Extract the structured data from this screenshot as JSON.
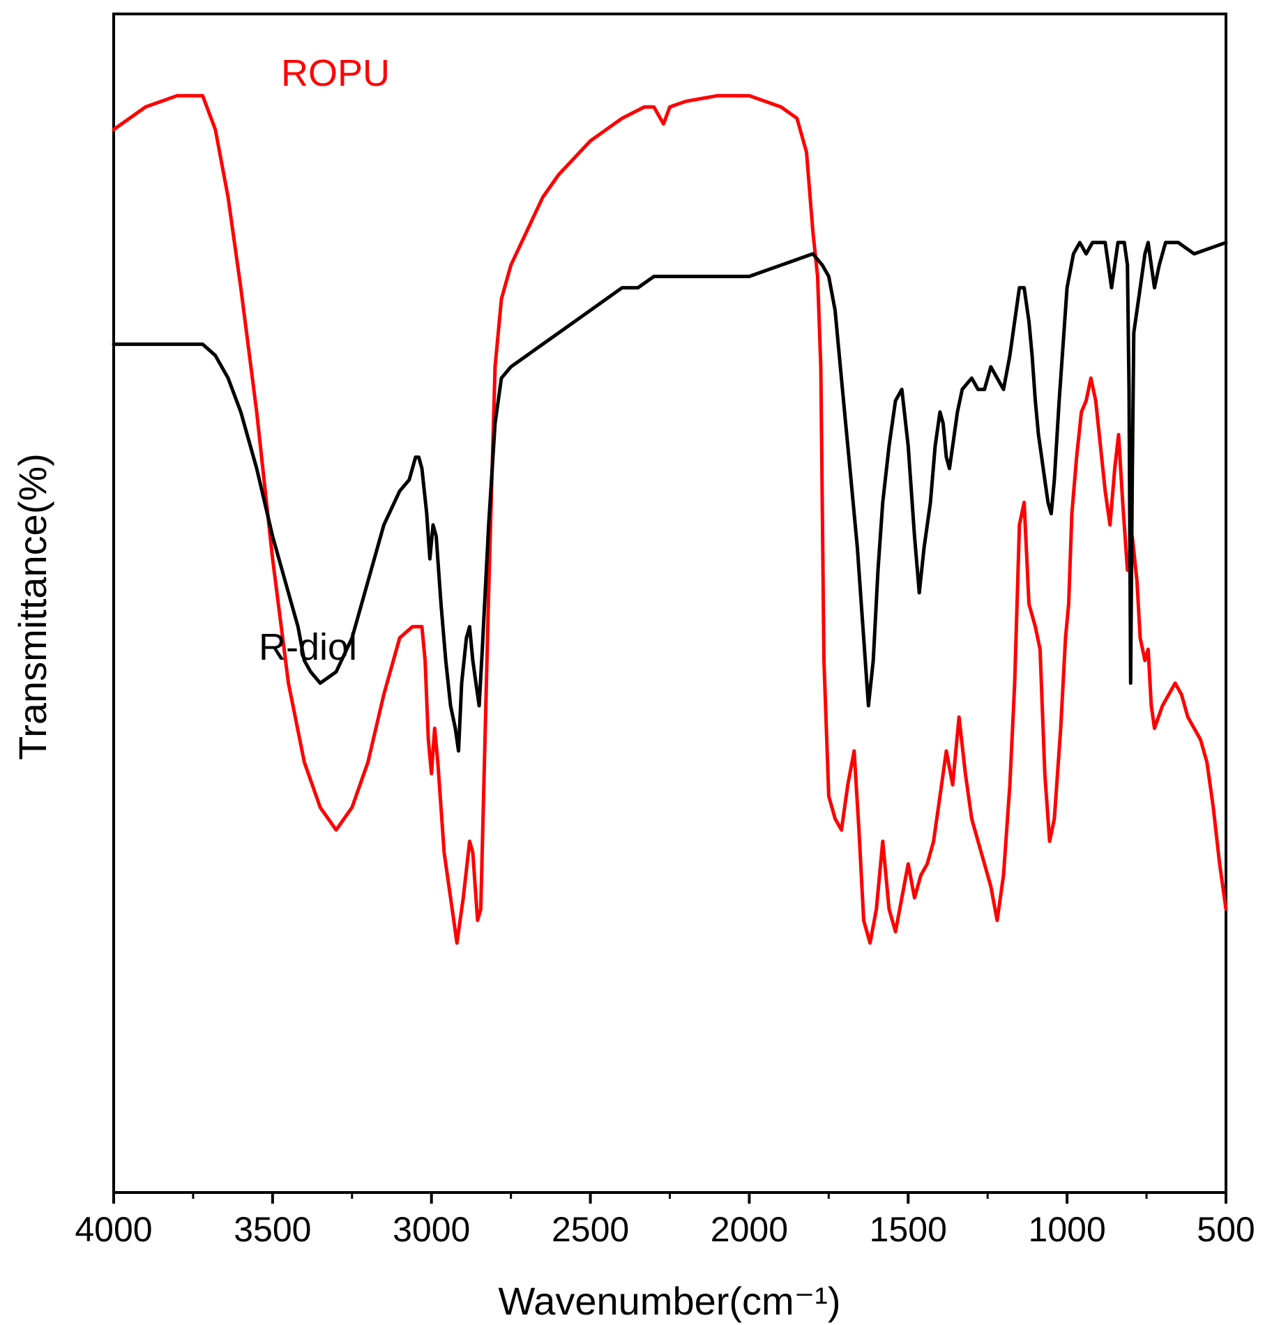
{
  "chart_data": {
    "type": "line",
    "title": "",
    "xlabel": "Wavenumber(cm⁻¹)",
    "ylabel": "Transmittance(%)",
    "xlim": [
      4000,
      500
    ],
    "x_reversed": true,
    "y_ticks_shown": false,
    "grid": false,
    "x_ticks": [
      "4000",
      "3500",
      "3000",
      "2500",
      "2000",
      "1500",
      "1000",
      "500"
    ],
    "colors": {
      "ROPU": "#ff0000",
      "R-diol": "#000000"
    },
    "series": [
      {
        "name": "ROPU",
        "color": "#ff0000",
        "points": [
          [
            4000,
            91
          ],
          [
            3900,
            93
          ],
          [
            3800,
            94
          ],
          [
            3720,
            94
          ],
          [
            3680,
            91
          ],
          [
            3640,
            85
          ],
          [
            3600,
            77
          ],
          [
            3550,
            66
          ],
          [
            3500,
            53
          ],
          [
            3450,
            42
          ],
          [
            3400,
            35
          ],
          [
            3350,
            31
          ],
          [
            3300,
            29
          ],
          [
            3250,
            31
          ],
          [
            3200,
            35
          ],
          [
            3150,
            41
          ],
          [
            3100,
            46
          ],
          [
            3060,
            47
          ],
          [
            3030,
            47
          ],
          [
            3020,
            44
          ],
          [
            3010,
            37
          ],
          [
            3000,
            34
          ],
          [
            2990,
            38
          ],
          [
            2980,
            35
          ],
          [
            2960,
            27
          ],
          [
            2940,
            23
          ],
          [
            2920,
            19
          ],
          [
            2900,
            23
          ],
          [
            2880,
            28
          ],
          [
            2870,
            27
          ],
          [
            2855,
            21
          ],
          [
            2845,
            22
          ],
          [
            2820,
            50
          ],
          [
            2800,
            70
          ],
          [
            2780,
            76
          ],
          [
            2750,
            79
          ],
          [
            2700,
            82
          ],
          [
            2650,
            85
          ],
          [
            2600,
            87
          ],
          [
            2500,
            90
          ],
          [
            2400,
            92
          ],
          [
            2330,
            93
          ],
          [
            2300,
            93
          ],
          [
            2270,
            91.5
          ],
          [
            2250,
            93
          ],
          [
            2200,
            93.5
          ],
          [
            2100,
            94
          ],
          [
            2000,
            94
          ],
          [
            1900,
            93
          ],
          [
            1850,
            92
          ],
          [
            1820,
            89
          ],
          [
            1800,
            82
          ],
          [
            1785,
            78
          ],
          [
            1775,
            70
          ],
          [
            1765,
            44
          ],
          [
            1750,
            32
          ],
          [
            1730,
            30
          ],
          [
            1710,
            29
          ],
          [
            1690,
            33
          ],
          [
            1670,
            36
          ],
          [
            1655,
            29
          ],
          [
            1640,
            21
          ],
          [
            1620,
            19
          ],
          [
            1600,
            22
          ],
          [
            1580,
            28
          ],
          [
            1560,
            22
          ],
          [
            1540,
            20
          ],
          [
            1520,
            23
          ],
          [
            1500,
            26
          ],
          [
            1480,
            23
          ],
          [
            1460,
            25
          ],
          [
            1440,
            26
          ],
          [
            1420,
            28
          ],
          [
            1400,
            32
          ],
          [
            1380,
            36
          ],
          [
            1360,
            33
          ],
          [
            1340,
            39
          ],
          [
            1320,
            34
          ],
          [
            1300,
            30
          ],
          [
            1280,
            28
          ],
          [
            1260,
            26
          ],
          [
            1240,
            24
          ],
          [
            1220,
            21
          ],
          [
            1200,
            25
          ],
          [
            1180,
            33
          ],
          [
            1165,
            42
          ],
          [
            1150,
            56
          ],
          [
            1135,
            58
          ],
          [
            1120,
            49
          ],
          [
            1100,
            47
          ],
          [
            1085,
            45
          ],
          [
            1070,
            34
          ],
          [
            1055,
            28
          ],
          [
            1040,
            30
          ],
          [
            1020,
            38
          ],
          [
            1005,
            46
          ],
          [
            995,
            49
          ],
          [
            985,
            57
          ],
          [
            970,
            62
          ],
          [
            955,
            66
          ],
          [
            940,
            67
          ],
          [
            925,
            69
          ],
          [
            910,
            67
          ],
          [
            895,
            63
          ],
          [
            880,
            59
          ],
          [
            865,
            56
          ],
          [
            850,
            61
          ],
          [
            838,
            64
          ],
          [
            825,
            58
          ],
          [
            810,
            52
          ],
          [
            795,
            55
          ],
          [
            780,
            51
          ],
          [
            770,
            46
          ],
          [
            755,
            44
          ],
          [
            745,
            45
          ],
          [
            735,
            40
          ],
          [
            725,
            38
          ],
          [
            700,
            40
          ],
          [
            680,
            41
          ],
          [
            660,
            42
          ],
          [
            640,
            41
          ],
          [
            620,
            39
          ],
          [
            600,
            38
          ],
          [
            580,
            37
          ],
          [
            560,
            35
          ],
          [
            540,
            31
          ],
          [
            520,
            26
          ],
          [
            500,
            22
          ]
        ]
      },
      {
        "name": "R-diol",
        "color": "#000000",
        "points": [
          [
            4000,
            72
          ],
          [
            3800,
            72
          ],
          [
            3720,
            72
          ],
          [
            3680,
            71
          ],
          [
            3640,
            69
          ],
          [
            3600,
            66
          ],
          [
            3550,
            61
          ],
          [
            3500,
            55
          ],
          [
            3450,
            50
          ],
          [
            3420,
            47
          ],
          [
            3400,
            44
          ],
          [
            3380,
            43
          ],
          [
            3350,
            42
          ],
          [
            3300,
            43
          ],
          [
            3250,
            46
          ],
          [
            3200,
            51
          ],
          [
            3150,
            56
          ],
          [
            3100,
            59
          ],
          [
            3070,
            60
          ],
          [
            3050,
            62
          ],
          [
            3040,
            62
          ],
          [
            3030,
            61
          ],
          [
            3015,
            57
          ],
          [
            3005,
            53
          ],
          [
            2995,
            56
          ],
          [
            2985,
            55
          ],
          [
            2970,
            49
          ],
          [
            2955,
            44
          ],
          [
            2940,
            40
          ],
          [
            2925,
            38
          ],
          [
            2915,
            36
          ],
          [
            2905,
            42
          ],
          [
            2890,
            46
          ],
          [
            2880,
            47
          ],
          [
            2870,
            44
          ],
          [
            2860,
            42
          ],
          [
            2850,
            40
          ],
          [
            2840,
            45
          ],
          [
            2820,
            56
          ],
          [
            2800,
            65
          ],
          [
            2780,
            69
          ],
          [
            2750,
            70
          ],
          [
            2700,
            71
          ],
          [
            2650,
            72
          ],
          [
            2600,
            73
          ],
          [
            2500,
            75
          ],
          [
            2400,
            77
          ],
          [
            2350,
            77
          ],
          [
            2300,
            78
          ],
          [
            2200,
            78
          ],
          [
            2100,
            78
          ],
          [
            2000,
            78
          ],
          [
            1900,
            79
          ],
          [
            1800,
            80
          ],
          [
            1770,
            79
          ],
          [
            1750,
            78
          ],
          [
            1730,
            75
          ],
          [
            1720,
            72
          ],
          [
            1700,
            66
          ],
          [
            1680,
            60
          ],
          [
            1660,
            54
          ],
          [
            1640,
            46
          ],
          [
            1625,
            40
          ],
          [
            1610,
            44
          ],
          [
            1595,
            52
          ],
          [
            1580,
            58
          ],
          [
            1560,
            63
          ],
          [
            1540,
            67
          ],
          [
            1520,
            68
          ],
          [
            1500,
            63
          ],
          [
            1480,
            55
          ],
          [
            1465,
            50
          ],
          [
            1450,
            54
          ],
          [
            1430,
            58
          ],
          [
            1415,
            63
          ],
          [
            1400,
            66
          ],
          [
            1390,
            65
          ],
          [
            1380,
            62
          ],
          [
            1370,
            61
          ],
          [
            1360,
            63
          ],
          [
            1345,
            66
          ],
          [
            1330,
            68
          ],
          [
            1300,
            69
          ],
          [
            1280,
            68
          ],
          [
            1260,
            68
          ],
          [
            1240,
            70
          ],
          [
            1220,
            69
          ],
          [
            1200,
            68
          ],
          [
            1180,
            71
          ],
          [
            1160,
            75
          ],
          [
            1150,
            77
          ],
          [
            1135,
            77
          ],
          [
            1120,
            74
          ],
          [
            1110,
            71
          ],
          [
            1100,
            67
          ],
          [
            1090,
            64
          ],
          [
            1080,
            62
          ],
          [
            1070,
            60
          ],
          [
            1060,
            58
          ],
          [
            1050,
            57
          ],
          [
            1040,
            60
          ],
          [
            1025,
            67
          ],
          [
            1010,
            73
          ],
          [
            1000,
            77
          ],
          [
            980,
            80
          ],
          [
            960,
            81
          ],
          [
            940,
            80
          ],
          [
            920,
            81
          ],
          [
            900,
            81
          ],
          [
            880,
            81
          ],
          [
            870,
            79
          ],
          [
            860,
            77
          ],
          [
            850,
            79
          ],
          [
            840,
            81
          ],
          [
            820,
            81
          ],
          [
            810,
            79
          ],
          [
            805,
            68
          ],
          [
            800,
            42
          ],
          [
            795,
            60
          ],
          [
            790,
            73
          ],
          [
            780,
            75
          ],
          [
            770,
            77
          ],
          [
            755,
            80
          ],
          [
            745,
            81
          ],
          [
            735,
            79
          ],
          [
            725,
            77
          ],
          [
            710,
            79
          ],
          [
            690,
            81
          ],
          [
            650,
            81
          ],
          [
            600,
            80
          ],
          [
            500,
            81
          ]
        ]
      }
    ]
  }
}
